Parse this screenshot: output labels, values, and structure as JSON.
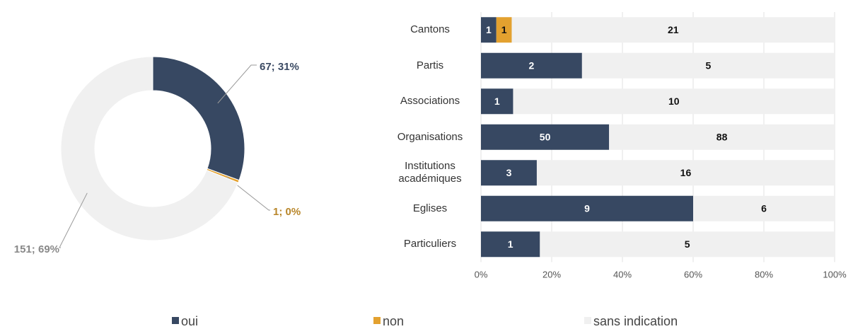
{
  "chart_data": [
    {
      "type": "donut",
      "categories": [
        "oui",
        "non",
        "sans indication"
      ],
      "values": [
        67,
        1,
        151
      ],
      "value_labels": [
        "67; 31%",
        "1; 0%",
        "151; 69%"
      ],
      "colors": [
        "#374862",
        "#e3a12f",
        "#f0f0f0"
      ]
    },
    {
      "type": "bar",
      "orientation": "horizontal",
      "stacked": "percent",
      "categories": [
        "Cantons",
        "Partis",
        "Associations",
        "Organisations",
        "Institutions académiques",
        "Eglises",
        "Particuliers"
      ],
      "series": [
        {
          "name": "oui",
          "color": "#374862",
          "values": [
            1,
            2,
            1,
            50,
            3,
            9,
            1
          ]
        },
        {
          "name": "non",
          "color": "#e3a12f",
          "values": [
            1,
            0,
            0,
            0,
            0,
            0,
            0
          ]
        },
        {
          "name": "sans indication",
          "color": "#f0f0f0",
          "values": [
            21,
            5,
            10,
            88,
            16,
            6,
            5
          ]
        }
      ],
      "xlim": [
        0,
        100
      ],
      "xticks": [
        {
          "value": 0,
          "label": "0%"
        },
        {
          "value": 20,
          "label": "20%"
        },
        {
          "value": 40,
          "label": "40%"
        },
        {
          "value": 60,
          "label": "60%"
        },
        {
          "value": 80,
          "label": "80%"
        },
        {
          "value": 100,
          "label": "100%"
        }
      ],
      "grid": true,
      "legend": "bottom"
    }
  ]
}
